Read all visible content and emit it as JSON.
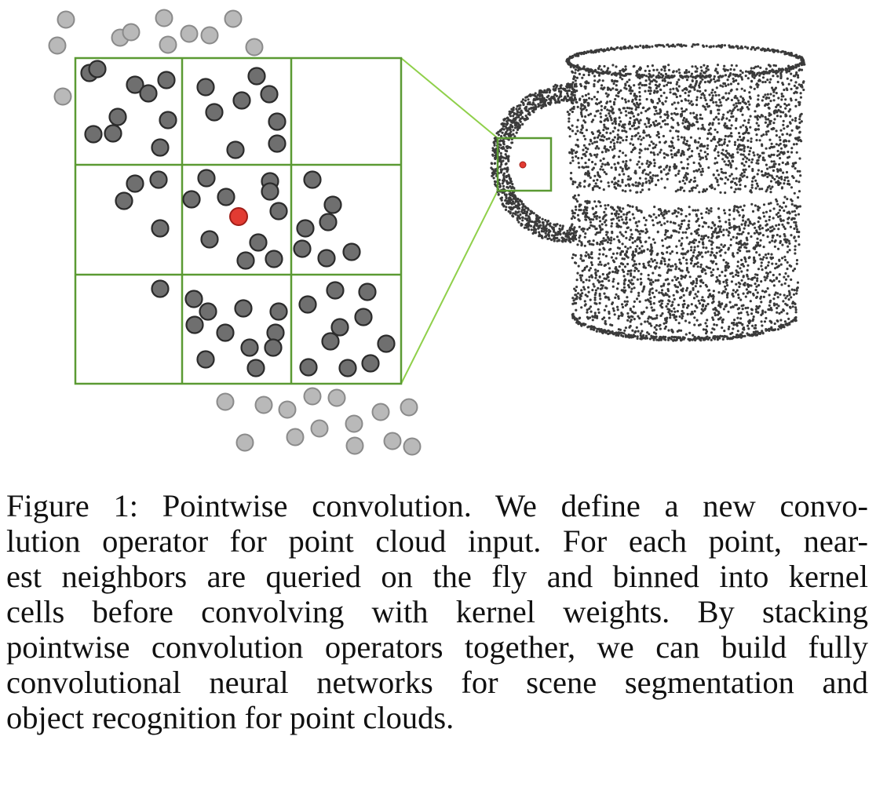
{
  "figure": {
    "kernel_grid": "3x3",
    "colors": {
      "grid_line": "#5b9a33",
      "zoom_line": "#8fd04a",
      "neighbor_point_fill": "#6f6f6f",
      "neighbor_point_stroke": "#2b2b2b",
      "outside_point_fill": "#b9b9b9",
      "outside_point_stroke": "#8a8a8a",
      "center_point_fill": "#e23b32",
      "center_point_stroke": "#a01e18",
      "cloud_point": "#3a3a3a"
    }
  },
  "caption": {
    "label": "Figure 1:",
    "lines": [
      "Figure 1: Pointwise convolution. We define a new convo-",
      "lution operator for point cloud input. For each point, near-",
      "est neighbors are queried on the fly and binned into kernel",
      "cells before convolving with kernel weights. By stacking",
      "pointwise convolution operators together, we can build fully",
      "convolutional neural networks for scene segmentation and",
      "object recognition for point clouds."
    ]
  }
}
